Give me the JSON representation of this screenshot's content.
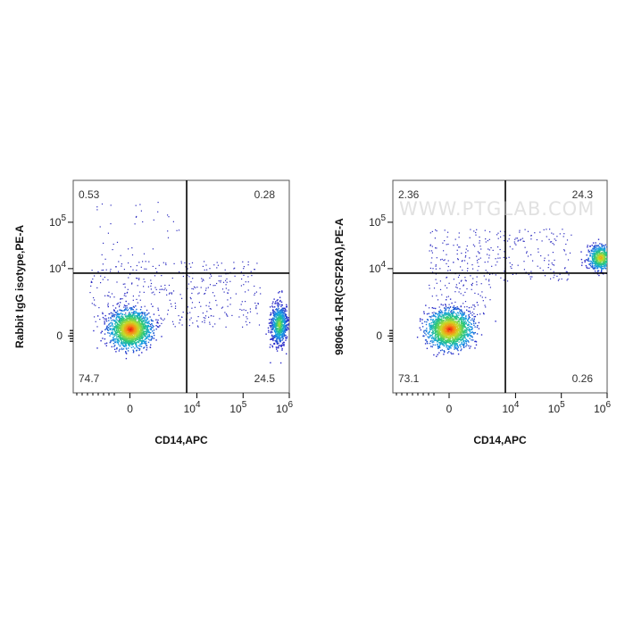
{
  "chart_data": [
    {
      "type": "scatter",
      "subtype": "flow-cytometry-density-dot-plot",
      "xlabel": "CD14,APC",
      "ylabel": "Rabbit IgG isotype,PE-A",
      "x_scale": "biexponential",
      "y_scale": "biexponential",
      "x_ticks": [
        {
          "value": 0,
          "label": "0"
        },
        {
          "value": 10000,
          "label": "10^4"
        },
        {
          "value": 100000,
          "label": "10^5"
        },
        {
          "value": 1000000,
          "label": "10^6"
        }
      ],
      "y_ticks": [
        {
          "value": 0,
          "label": "0"
        },
        {
          "value": 10000,
          "label": "10^4"
        },
        {
          "value": 100000,
          "label": "10^5"
        }
      ],
      "gate": {
        "x": 6000,
        "y": 8000
      },
      "quadrants": [
        {
          "position": "top-left",
          "value": "0.53"
        },
        {
          "position": "top-right",
          "value": "0.28"
        },
        {
          "position": "bottom-left",
          "value": "74.7"
        },
        {
          "position": "bottom-right",
          "value": "24.5"
        }
      ],
      "populations": [
        {
          "name": "CD14 negative",
          "x_center": 0,
          "y_center": 0,
          "density": "high"
        },
        {
          "name": "CD14 positive",
          "x_center": 450000,
          "y_center": 1000,
          "density": "medium"
        }
      ]
    },
    {
      "type": "scatter",
      "subtype": "flow-cytometry-density-dot-plot",
      "xlabel": "CD14,APC",
      "ylabel": "98066-1-RR(CSF2RA),PE-A",
      "x_scale": "biexponential",
      "y_scale": "biexponential",
      "x_ticks": [
        {
          "value": 0,
          "label": "0"
        },
        {
          "value": 10000,
          "label": "10^4"
        },
        {
          "value": 100000,
          "label": "10^5"
        },
        {
          "value": 1000000,
          "label": "10^6"
        }
      ],
      "y_ticks": [
        {
          "value": 0,
          "label": "0"
        },
        {
          "value": 10000,
          "label": "10^4"
        },
        {
          "value": 100000,
          "label": "10^5"
        }
      ],
      "gate": {
        "x": 6000,
        "y": 8000
      },
      "quadrants": [
        {
          "position": "top-left",
          "value": "2.36"
        },
        {
          "position": "top-right",
          "value": "24.3"
        },
        {
          "position": "bottom-left",
          "value": "73.1"
        },
        {
          "position": "bottom-right",
          "value": "0.26"
        }
      ],
      "populations": [
        {
          "name": "CD14 negative",
          "x_center": 0,
          "y_center": 0,
          "density": "high"
        },
        {
          "name": "CD14+ CSF2RA+",
          "x_center": 450000,
          "y_center": 30000,
          "density": "medium"
        }
      ]
    }
  ],
  "watermark": "WWW.PTGLAB.COM"
}
